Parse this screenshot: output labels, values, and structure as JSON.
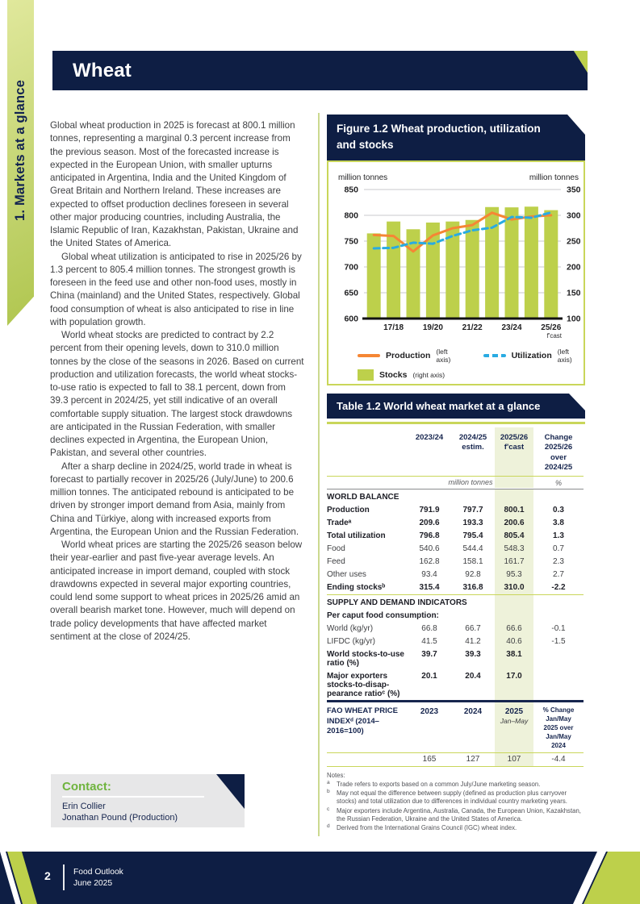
{
  "colors": {
    "navy": "#0e1e44",
    "accent_green": "#bdd04b",
    "rule_green": "#c9d65a",
    "highlight": "#eef2da",
    "orange": "#f58634",
    "blue": "#29abe2",
    "contact_green": "#6fb43e"
  },
  "sidebar": {
    "label": "1. Markets at a glance"
  },
  "page_title": "Wheat",
  "article": {
    "paragraphs": [
      "Global wheat production in 2025 is forecast at 800.1 million tonnes, representing a marginal 0.3 percent increase from the previous season. Most of the forecasted increase is expected in the European Union, with smaller upturns anticipated in Argentina, India and the United Kingdom of Great Britain and Northern Ireland. These increases are expected to offset production declines foreseen in several other major producing countries, including Australia, the Islamic Republic of Iran, Kazakhstan, Pakistan, Ukraine and the United States of America.",
      "Global wheat utilization is anticipated to rise in 2025/26 by 1.3 percent to 805.4 million tonnes. The strongest growth is foreseen in the feed use and other non-food uses, mostly in China (mainland) and the United States, respectively. Global food consumption of wheat is also anticipated to rise in line with population growth.",
      "World wheat stocks are predicted to contract by 2.2 percent from their opening levels, down to 310.0 million tonnes by the close of the seasons in 2026. Based on current production and utilization forecasts, the world wheat stocks-to-use ratio is expected to fall to 38.1 percent, down from 39.3 percent in 2024/25, yet still indicative of an overall comfortable supply situation. The largest stock drawdowns are anticipated in the Russian Federation, with smaller declines expected in Argentina, the European Union, Pakistan, and several other countries.",
      "After a sharp decline in 2024/25, world trade in wheat is forecast to partially recover in 2025/26 (July/June) to 200.6 million tonnes. The anticipated rebound is anticipated to be driven by stronger import demand from Asia, mainly from China and Türkiye, along with increased exports from Argentina, the European Union and the Russian Federation.",
      "World wheat prices are starting the 2025/26 season below their year-earlier and past five-year average levels. An anticipated increase in import demand, coupled with stock drawdowns expected in several major exporting countries, could lend some support to wheat prices in 2025/26 amid an overall bearish market tone. However, much will depend on trade policy developments that have affected market sentiment at the close of 2024/25."
    ]
  },
  "figure": {
    "title": "Figure 1.2 Wheat production, utilization and stocks",
    "left_axis_label": "million tonnes",
    "right_axis_label": "million tonnes",
    "forecast_note": "f'cast",
    "legend": [
      {
        "label": "Production",
        "note": "(left axis)"
      },
      {
        "label": "Utilization",
        "note": "(left axis)"
      },
      {
        "label": "Stocks",
        "note": "(right axis)"
      }
    ]
  },
  "chart_data": {
    "type": "bar+line combo",
    "categories": [
      "16/17",
      "17/18",
      "18/19",
      "19/20",
      "20/21",
      "21/22",
      "22/23",
      "23/24",
      "24/25",
      "25/26"
    ],
    "x_tick_labels": [
      "17/18",
      "19/20",
      "21/22",
      "23/24",
      "25/26"
    ],
    "x_note_under_last": "f'cast",
    "left_ylim": [
      600,
      850
    ],
    "right_ylim": [
      100,
      350
    ],
    "yticks_left": [
      600,
      650,
      700,
      750,
      800,
      850
    ],
    "yticks_right": [
      100,
      150,
      200,
      250,
      300,
      350
    ],
    "grid": "horizontal",
    "legend_position": "bottom",
    "series": [
      {
        "name": "Production",
        "type": "line",
        "axis": "left",
        "color": "#f58634",
        "values": [
          762,
          760,
          730,
          761,
          775,
          781,
          805,
          791.9,
          797.7,
          800.1
        ]
      },
      {
        "name": "Utilization",
        "type": "line-dashed",
        "axis": "left",
        "color": "#29abe2",
        "values": [
          736,
          737,
          747,
          745,
          760,
          771,
          776,
          796.8,
          795.4,
          805.4
        ]
      },
      {
        "name": "Stocks",
        "type": "bar",
        "axis": "right",
        "color": "#bdd04b",
        "values": [
          265,
          288,
          273,
          286,
          288,
          291,
          316,
          315.4,
          316.8,
          310
        ]
      }
    ]
  },
  "table": {
    "title": "Table 1.2 World wheat market at a glance",
    "col_headers": [
      "2023/24",
      "2024/25\nestim.",
      "2025/26\nf'cast",
      "Change\n2025/26\nover\n2024/25"
    ],
    "unit_row": {
      "unit": "million tonnes",
      "pct": "%"
    },
    "rows": [
      {
        "type": "section",
        "label": "WORLD BALANCE"
      },
      {
        "type": "bold",
        "label": "Production",
        "values": [
          "791.9",
          "797.7",
          "800.1",
          "0.3"
        ]
      },
      {
        "type": "bold",
        "label": "Tradeᵃ",
        "values": [
          "209.6",
          "193.3",
          "200.6",
          "3.8"
        ]
      },
      {
        "type": "bold",
        "label": "Total utilization",
        "values": [
          "796.8",
          "795.4",
          "805.4",
          "1.3"
        ]
      },
      {
        "type": "plain",
        "label": "Food",
        "values": [
          "540.6",
          "544.4",
          "548.3",
          "0.7"
        ]
      },
      {
        "type": "plain",
        "label": "Feed",
        "values": [
          "162.8",
          "158.1",
          "161.7",
          "2.3"
        ]
      },
      {
        "type": "plain",
        "label": "Other uses",
        "values": [
          "93.4",
          "92.8",
          "95.3",
          "2.7"
        ]
      },
      {
        "type": "bold rule-green",
        "label": "Ending stocksᵇ",
        "values": [
          "315.4",
          "316.8",
          "310.0",
          "-2.2"
        ]
      },
      {
        "type": "section",
        "label": "SUPPLY AND DEMAND INDICATORS"
      },
      {
        "type": "sub",
        "label": "Per caput food consumption:"
      },
      {
        "type": "plain",
        "label": "World (kg/yr)",
        "values": [
          "66.8",
          "66.7",
          "66.6",
          "-0.1"
        ]
      },
      {
        "type": "plain",
        "label": "LIFDC (kg/yr)",
        "values": [
          "41.5",
          "41.2",
          "40.6",
          "-1.5"
        ]
      },
      {
        "type": "bold",
        "label": "World stocks-to-use ratio (%)",
        "values": [
          "39.7",
          "39.3",
          "38.1",
          ""
        ]
      },
      {
        "type": "bold rule-navy",
        "label": "Major exporters stocks-to-disap­pearance ratioᶜ (%)",
        "values": [
          "20.1",
          "20.4",
          "17.0",
          ""
        ]
      },
      {
        "type": "price rule-green",
        "label": "FAO WHEAT PRICE INDEXᵈ\n(2014–2016=100)",
        "values": [
          "2023",
          "2024",
          "2025\nJan–May",
          "% Change\nJan/May\n2025 over\nJan/May\n2024"
        ]
      },
      {
        "type": "plain rule-green",
        "label": "",
        "values": [
          "165",
          "127",
          "107",
          "-4.4"
        ]
      }
    ],
    "notes_title": "Notes:",
    "notes": [
      {
        "marker": "a",
        "text": "Trade refers to exports based on a common July/June marketing season."
      },
      {
        "marker": "b",
        "text": "May not equal the difference between supply (defined as production plus carryover stocks) and total utilization due to differences in individual country marketing years."
      },
      {
        "marker": "c",
        "text": "Major exporters include Argentina, Australia, Canada, the European Union, Kazakhstan, the Russian Federation, Ukraine and the United States of America."
      },
      {
        "marker": "d",
        "text": "Derived from the International Grains Council (IGC) wheat index."
      }
    ]
  },
  "contact": {
    "heading": "Contact:",
    "names": [
      "Erin Collier",
      "Jonathan Pound (Production)"
    ]
  },
  "footer": {
    "page_number": "2",
    "publication": "Food Outlook",
    "issue": "June 2025"
  }
}
